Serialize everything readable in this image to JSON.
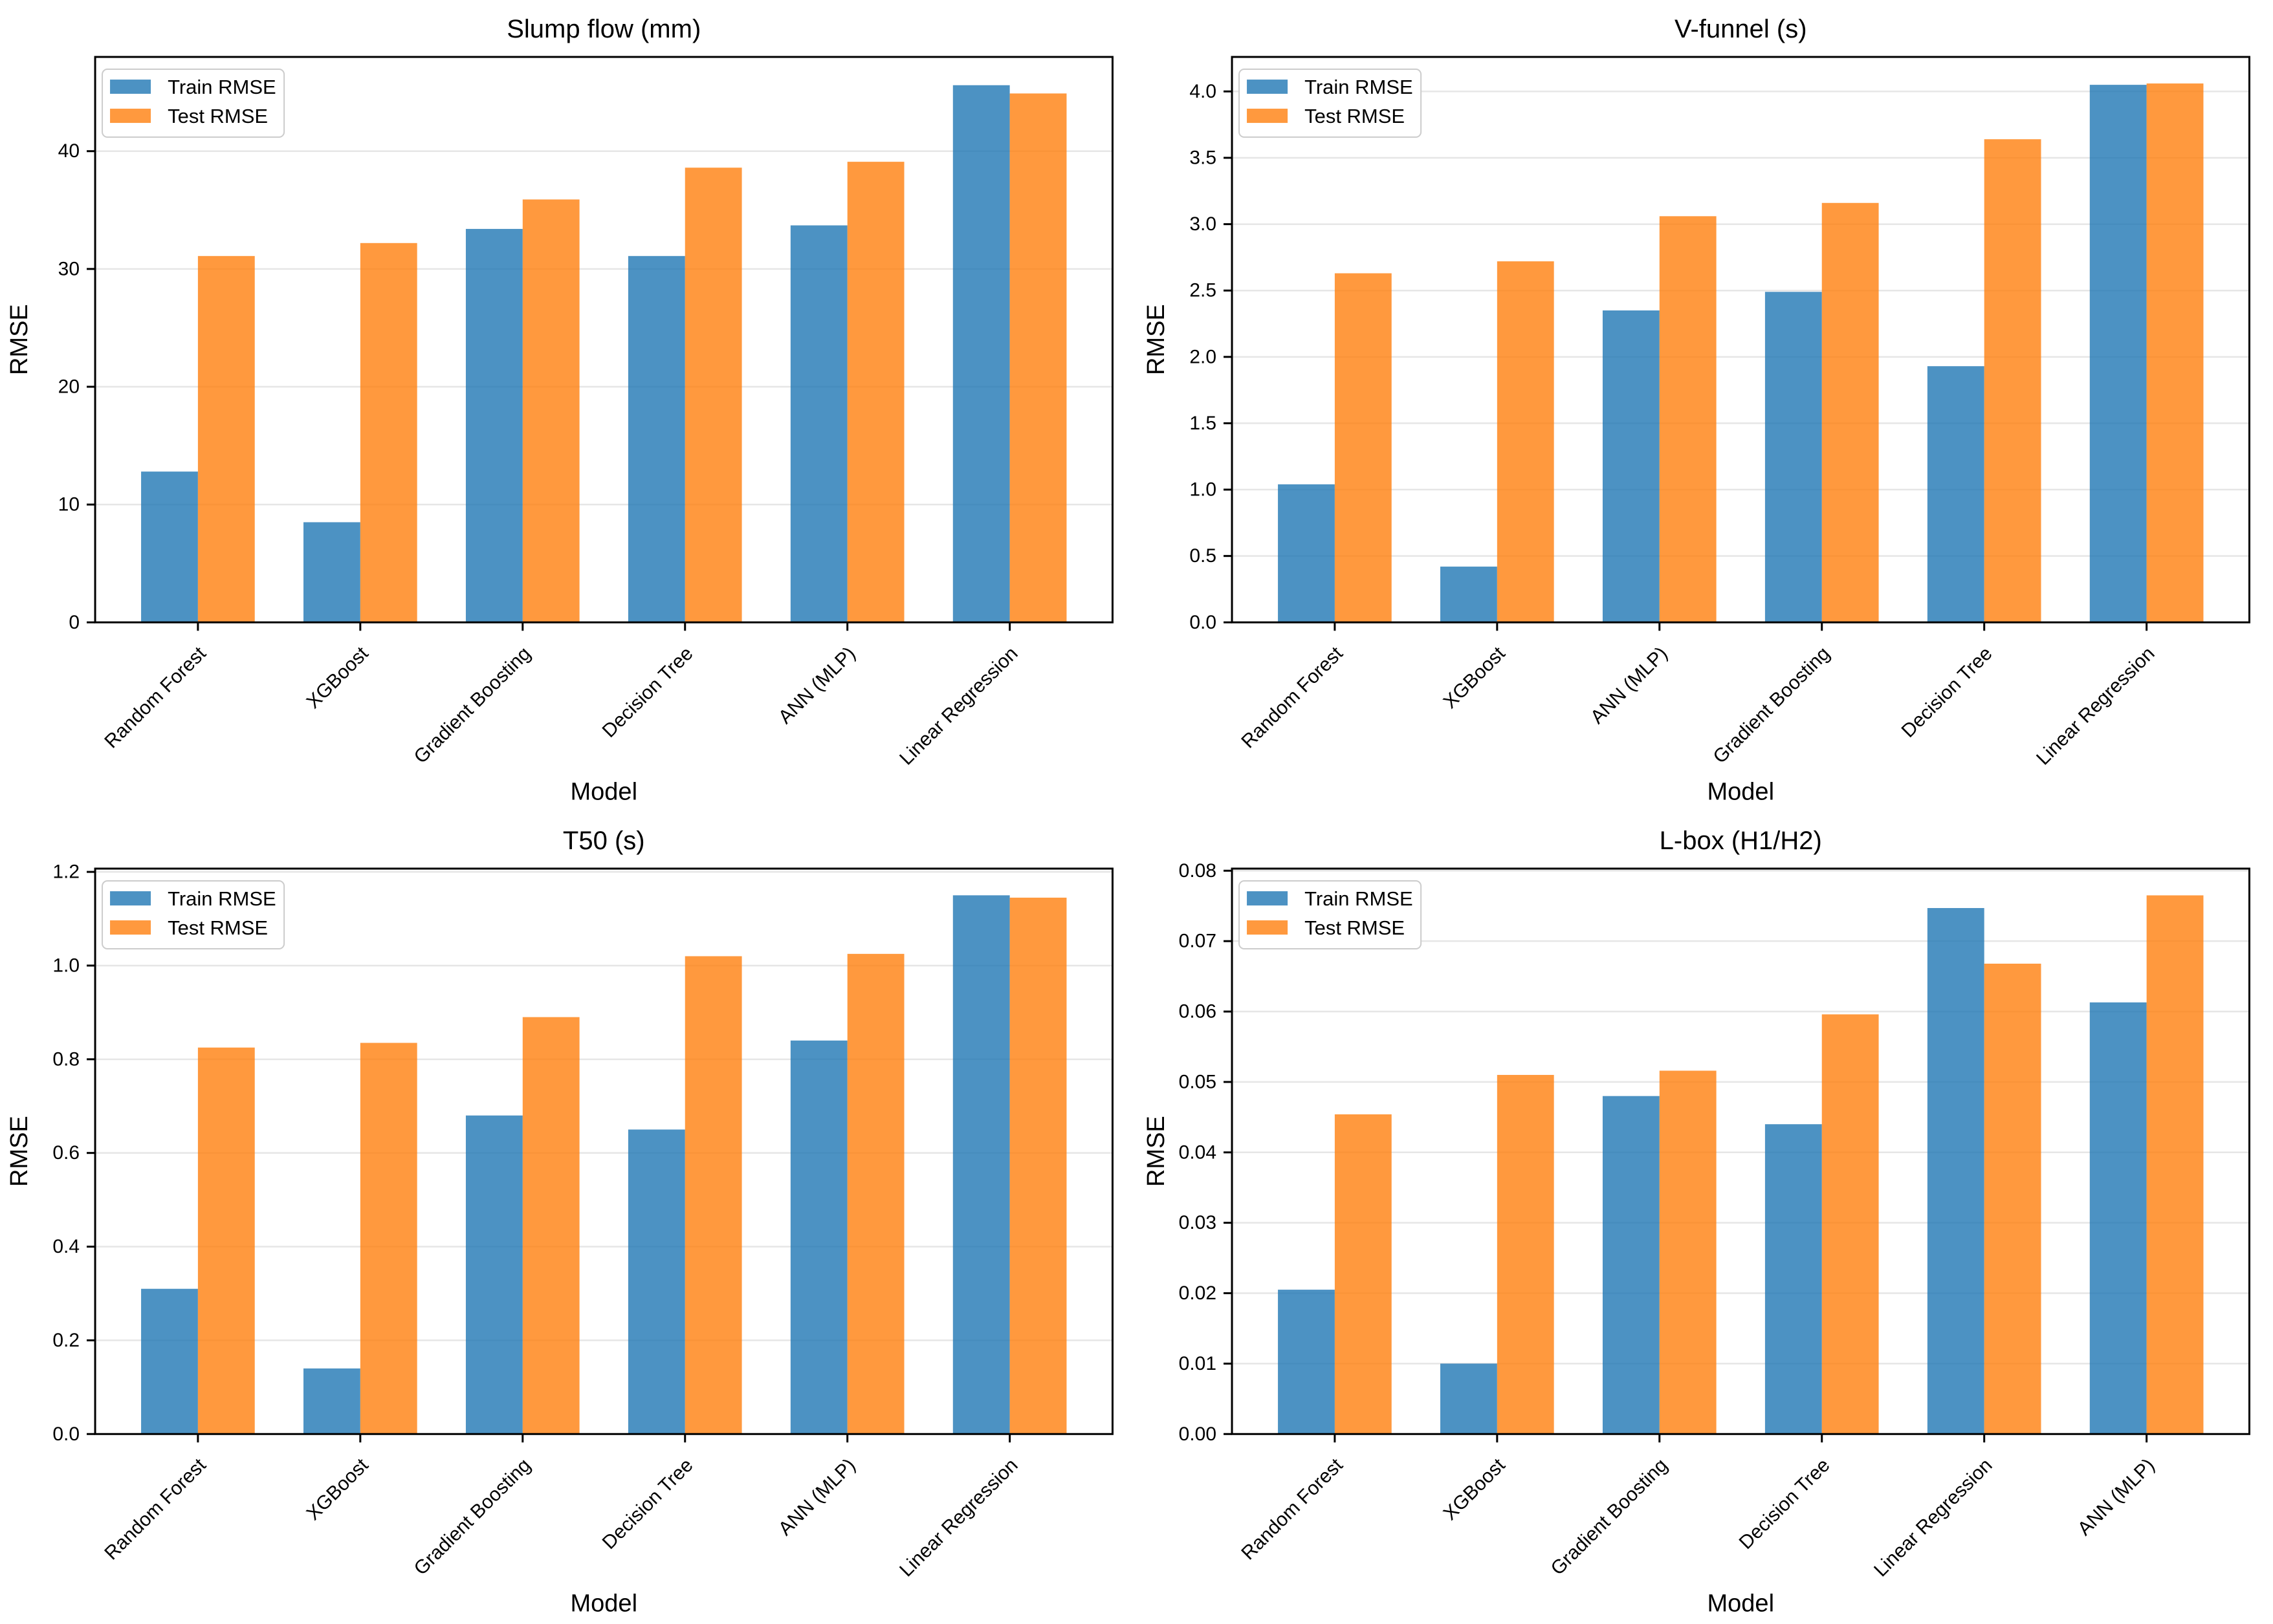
{
  "figure": {
    "background": "#ffffff",
    "train_color": "#1f77b4",
    "test_color": "#ff7f0e",
    "bar_alpha": 0.8,
    "grid_color": "#e6e6e6",
    "spine_color": "#000000",
    "legend_border_color": "#cccccc",
    "legend_bg": "#ffffff"
  },
  "legend": {
    "train_label": "Train RMSE",
    "test_label": "Test RMSE",
    "position": "upper left"
  },
  "chart_data": [
    {
      "type": "bar",
      "title": "Slump flow (mm)",
      "xlabel": "Model",
      "ylabel": "RMSE",
      "categories": [
        "Random Forest",
        "XGBoost",
        "Gradient Boosting",
        "Decision Tree",
        "ANN (MLP)",
        "Linear Regression"
      ],
      "series": [
        {
          "name": "Train RMSE",
          "values": [
            12.8,
            8.5,
            33.4,
            31.1,
            33.7,
            45.6
          ]
        },
        {
          "name": "Test RMSE",
          "values": [
            31.1,
            32.2,
            35.9,
            38.6,
            39.1,
            44.9
          ]
        }
      ],
      "ylim": [
        0,
        48
      ],
      "yticks": [
        0,
        10,
        20,
        30,
        40
      ],
      "ytick_labels": [
        "0",
        "10",
        "20",
        "30",
        "40"
      ],
      "grid": true,
      "legend_position": "upper left",
      "bar_width": 0.35
    },
    {
      "type": "bar",
      "title": "V-funnel (s)",
      "xlabel": "Model",
      "ylabel": "RMSE",
      "categories": [
        "Random Forest",
        "XGBoost",
        "ANN (MLP)",
        "Gradient Boosting",
        "Decision Tree",
        "Linear Regression"
      ],
      "series": [
        {
          "name": "Train RMSE",
          "values": [
            1.04,
            0.42,
            2.35,
            2.49,
            1.93,
            4.05
          ]
        },
        {
          "name": "Test RMSE",
          "values": [
            2.63,
            2.72,
            3.06,
            3.16,
            3.64,
            4.06
          ]
        }
      ],
      "ylim": [
        0,
        4.26
      ],
      "yticks": [
        0.0,
        0.5,
        1.0,
        1.5,
        2.0,
        2.5,
        3.0,
        3.5,
        4.0
      ],
      "ytick_labels": [
        "0.0",
        "0.5",
        "1.0",
        "1.5",
        "2.0",
        "2.5",
        "3.0",
        "3.5",
        "4.0"
      ],
      "grid": true,
      "legend_position": "upper left",
      "bar_width": 0.35
    },
    {
      "type": "bar",
      "title": "T50 (s)",
      "xlabel": "Model",
      "ylabel": "RMSE",
      "categories": [
        "Random Forest",
        "XGBoost",
        "Gradient Boosting",
        "Decision Tree",
        "ANN (MLP)",
        "Linear Regression"
      ],
      "series": [
        {
          "name": "Train RMSE",
          "values": [
            0.31,
            0.14,
            0.68,
            0.65,
            0.84,
            1.15
          ]
        },
        {
          "name": "Test RMSE",
          "values": [
            0.825,
            0.835,
            0.89,
            1.02,
            1.025,
            1.145
          ]
        }
      ],
      "ylim": [
        0,
        1.207
      ],
      "yticks": [
        0.0,
        0.2,
        0.4,
        0.6,
        0.8,
        1.0,
        1.2
      ],
      "ytick_labels": [
        "0.0",
        "0.2",
        "0.4",
        "0.6",
        "0.8",
        "1.0",
        "1.2"
      ],
      "grid": true,
      "legend_position": "upper left",
      "bar_width": 0.35
    },
    {
      "type": "bar",
      "title": "L-box (H1/H2)",
      "xlabel": "Model",
      "ylabel": "RMSE",
      "categories": [
        "Random Forest",
        "XGBoost",
        "Gradient Boosting",
        "Decision Tree",
        "Linear Regression",
        "ANN (MLP)"
      ],
      "series": [
        {
          "name": "Train RMSE",
          "values": [
            0.0205,
            0.01,
            0.048,
            0.044,
            0.0747,
            0.0613
          ]
        },
        {
          "name": "Test RMSE",
          "values": [
            0.0454,
            0.051,
            0.0516,
            0.0596,
            0.0668,
            0.0765
          ]
        }
      ],
      "ylim": [
        0,
        0.0803
      ],
      "yticks": [
        0.0,
        0.01,
        0.02,
        0.03,
        0.04,
        0.05,
        0.06,
        0.07,
        0.08
      ],
      "ytick_labels": [
        "0.00",
        "0.01",
        "0.02",
        "0.03",
        "0.04",
        "0.05",
        "0.06",
        "0.07",
        "0.08"
      ],
      "grid": true,
      "legend_position": "upper left",
      "bar_width": 0.35
    }
  ]
}
